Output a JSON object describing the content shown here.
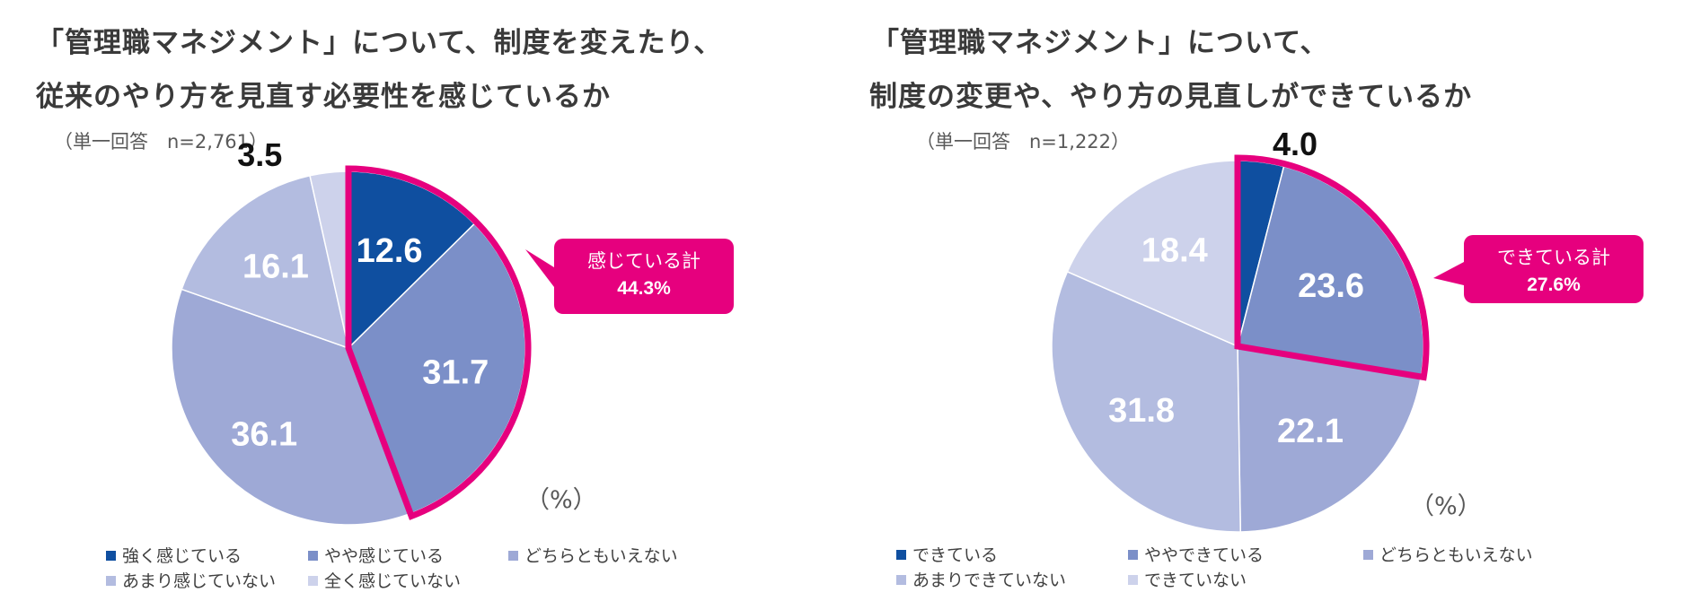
{
  "chart_data": [
    {
      "type": "pie",
      "title": [
        "「管理職マネジメント」について、制度を変えたり、",
        "従来のやり方を見直す必要性を感じているか"
      ],
      "sample_note": "（単一回答　n=2,761）",
      "unit_label": "（%）",
      "categories": [
        "強く感じている",
        "やや感じている",
        "どちらともいえない",
        "あまり感じていない",
        "全く感じていない"
      ],
      "values": [
        12.6,
        31.7,
        36.1,
        16.1,
        3.5
      ],
      "value_labels": [
        "12.6",
        "31.7",
        "36.1",
        "16.1",
        "3.5"
      ],
      "colors": [
        "#0f4fa0",
        "#7b8fc8",
        "#9ea9d6",
        "#b3bce0",
        "#cdd2eb"
      ],
      "highlight": {
        "text": "感じている計",
        "value": "44.3%",
        "slices": [
          0,
          1
        ]
      },
      "legend": [
        "強く感じている",
        "やや感じている",
        "どちらともいえない",
        "あまり感じていない",
        "全く感じていない"
      ]
    },
    {
      "type": "pie",
      "title": [
        "「管理職マネジメント」について、",
        "制度の変更や、やり方の見直しができているか"
      ],
      "sample_note": "（単一回答　n=1,222）",
      "unit_label": "（%）",
      "categories": [
        "できている",
        "ややできている",
        "どちらともいえない",
        "あまりできていない",
        "できていない"
      ],
      "values": [
        4.0,
        23.6,
        22.1,
        31.8,
        18.4
      ],
      "value_labels": [
        "4.0",
        "23.6",
        "22.1",
        "31.8",
        "18.4"
      ],
      "colors": [
        "#0f4fa0",
        "#7b8fc8",
        "#9ea9d6",
        "#b3bce0",
        "#cdd2eb"
      ],
      "highlight": {
        "text": "できている計",
        "value": "27.6%",
        "slices": [
          0,
          1
        ]
      },
      "legend": [
        "できている",
        "ややできている",
        "どちらともいえない",
        "あまりできていない",
        "できていない"
      ]
    }
  ],
  "accent_color": "#e6007e"
}
